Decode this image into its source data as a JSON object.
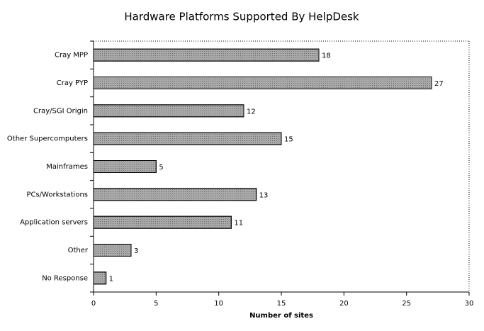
{
  "chart_data": {
    "type": "hbar",
    "title": "Hardware Platforms Supported By HelpDesk",
    "categories": [
      "Cray MPP",
      "Cray PYP",
      "Cray/SGI Origin",
      "Other Supercomputers",
      "Mainframes",
      "PCs/Workstations",
      "Application servers",
      "Other",
      "No Response"
    ],
    "values": [
      18,
      27,
      12,
      15,
      5,
      13,
      11,
      3,
      1
    ],
    "color": "#a8a8a8",
    "xlabel": "Number of sites",
    "xlim": [
      0,
      30
    ],
    "xticks": [
      0,
      5,
      10,
      15,
      20,
      25,
      30
    ]
  }
}
